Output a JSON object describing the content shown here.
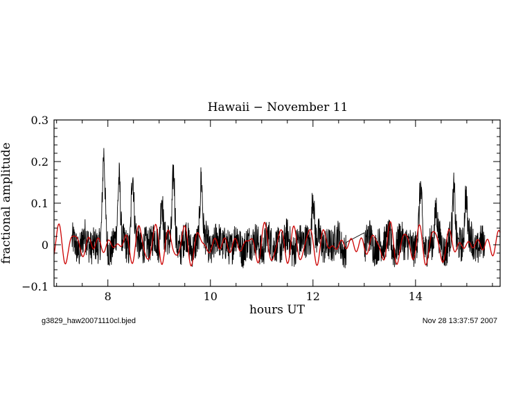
{
  "chart_data": {
    "type": "line",
    "title": "Hawaii − November 11",
    "xlabel": "hours UT",
    "ylabel": "fractional amplitude",
    "xlim": [
      6.95,
      15.65
    ],
    "ylim": [
      -0.1,
      0.3
    ],
    "x_ticks": [
      8,
      10,
      12,
      14
    ],
    "x_tick_labels": [
      "8",
      "10",
      "12",
      "14"
    ],
    "y_ticks": [
      -0.1,
      0,
      0.1,
      0.2,
      0.3
    ],
    "y_tick_labels": [
      "−0.1",
      "0",
      "0.1",
      "0.2",
      "0.3"
    ],
    "grid": false,
    "series": [
      {
        "color": "#000000",
        "style": "noisy light curve (fractional amplitude vs. hours UT)",
        "x_range": [
          7.3,
          15.35
        ],
        "gap": [
          12.65,
          13.0
        ],
        "peaks": [
          {
            "x": 7.92,
            "y": 0.215
          },
          {
            "x": 8.22,
            "y": 0.175
          },
          {
            "x": 8.48,
            "y": 0.185
          },
          {
            "x": 9.05,
            "y": 0.15
          },
          {
            "x": 9.28,
            "y": 0.19
          },
          {
            "x": 9.82,
            "y": 0.175
          },
          {
            "x": 12.0,
            "y": 0.155
          },
          {
            "x": 14.1,
            "y": 0.135
          },
          {
            "x": 14.4,
            "y": 0.1
          },
          {
            "x": 14.75,
            "y": 0.145
          },
          {
            "x": 14.98,
            "y": 0.145
          }
        ],
        "baseline_min": -0.09,
        "baseline_max": 0.05
      },
      {
        "color": "#cc0000",
        "style": "smooth multi-sinusoid fit",
        "x_range": [
          6.95,
          15.65
        ],
        "amplitude_range": [
          -0.06,
          0.065
        ]
      }
    ]
  },
  "footer": {
    "left": "g3829_haw20071110cl.bjed",
    "right": "Nov 28 13:37:57 2007"
  }
}
